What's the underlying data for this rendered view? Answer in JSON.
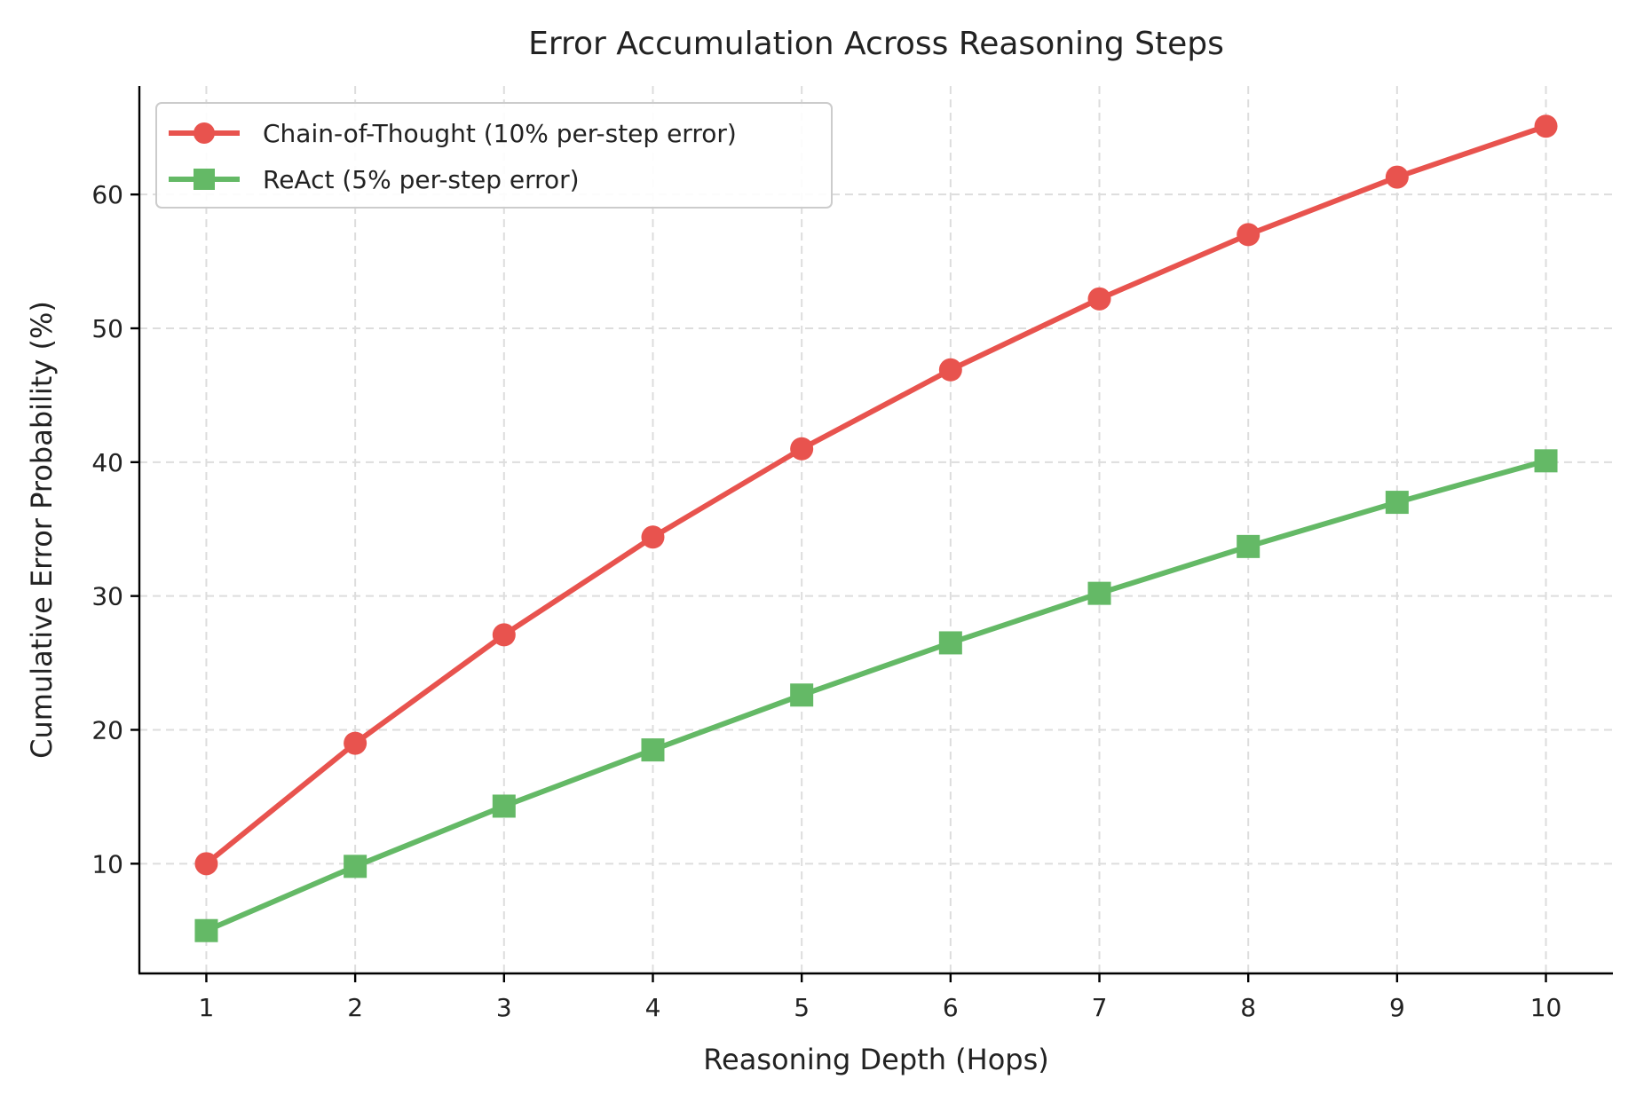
{
  "chart_data": {
    "type": "line",
    "title": "Error Accumulation Across Reasoning Steps",
    "xlabel": "Reasoning Depth (Hops)",
    "ylabel": "Cumulative Error Probability (%)",
    "x": [
      1,
      2,
      3,
      4,
      5,
      6,
      7,
      8,
      9,
      10
    ],
    "xticks": [
      "1",
      "2",
      "3",
      "4",
      "5",
      "6",
      "7",
      "8",
      "9",
      "10"
    ],
    "yticks": [
      "10",
      "20",
      "30",
      "40",
      "50",
      "60"
    ],
    "ytick_values": [
      10,
      20,
      30,
      40,
      50,
      60
    ],
    "xlim": [
      0.55,
      10.45
    ],
    "ylim": [
      1.8,
      68.1
    ],
    "grid": true,
    "legend_position": "top-left",
    "series": [
      {
        "name": "Chain-of-Thought (10% per-step error)",
        "values": [
          10.0,
          19.0,
          27.1,
          34.4,
          41.0,
          46.9,
          52.2,
          57.0,
          61.3,
          65.1
        ],
        "color": "#e8534e",
        "marker": "circle"
      },
      {
        "name": "ReAct (5% per-step error)",
        "values": [
          5.0,
          9.8,
          14.3,
          18.5,
          22.6,
          26.5,
          30.2,
          33.7,
          37.0,
          40.1
        ],
        "color": "#64b966",
        "marker": "square"
      }
    ]
  }
}
